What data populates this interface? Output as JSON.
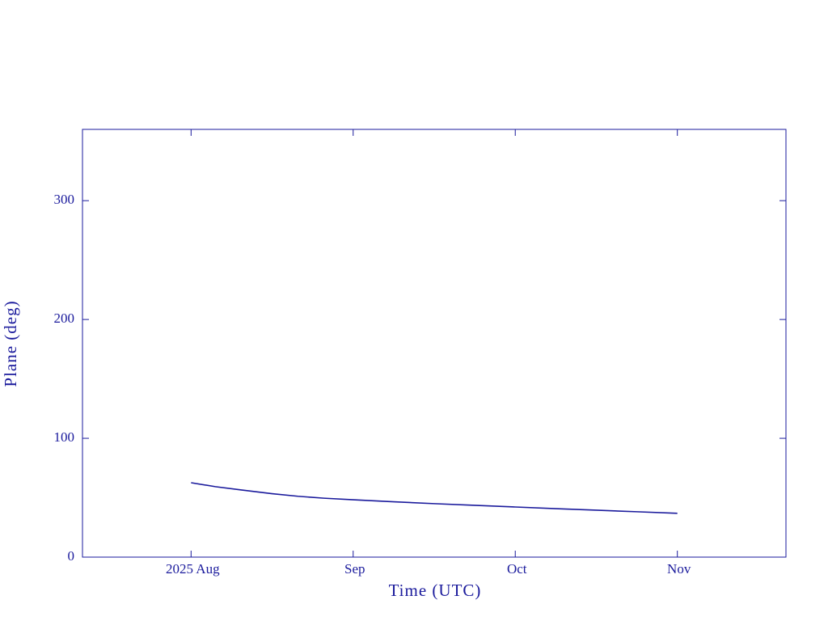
{
  "chart_data": {
    "type": "line",
    "x_label": "Time (UTC)",
    "y_label": "Plane (deg)",
    "x": [
      8.0,
      8.15,
      8.31,
      8.5,
      8.66,
      8.82,
      9.0,
      9.25,
      9.5,
      9.75,
      10.0,
      10.25,
      10.5,
      10.75,
      11.0
    ],
    "series": [
      {
        "name": "Plane",
        "color": "#1a1a9c",
        "values": [
          62.6,
          59.3,
          56.5,
          53.4,
          51.2,
          49.6,
          48.3,
          46.6,
          45.0,
          43.6,
          42.2,
          40.8,
          39.5,
          38.2,
          36.9
        ]
      }
    ],
    "xlim": [
      7.33,
      11.67
    ],
    "xticks": [
      {
        "value": 8,
        "label": "2025 Aug"
      },
      {
        "value": 9,
        "label": "Sep"
      },
      {
        "value": 10,
        "label": "Oct"
      },
      {
        "value": 11,
        "label": "Nov"
      }
    ],
    "ylim": [
      0,
      360
    ],
    "yticks": [
      0,
      100,
      200,
      300
    ],
    "grid": false
  }
}
